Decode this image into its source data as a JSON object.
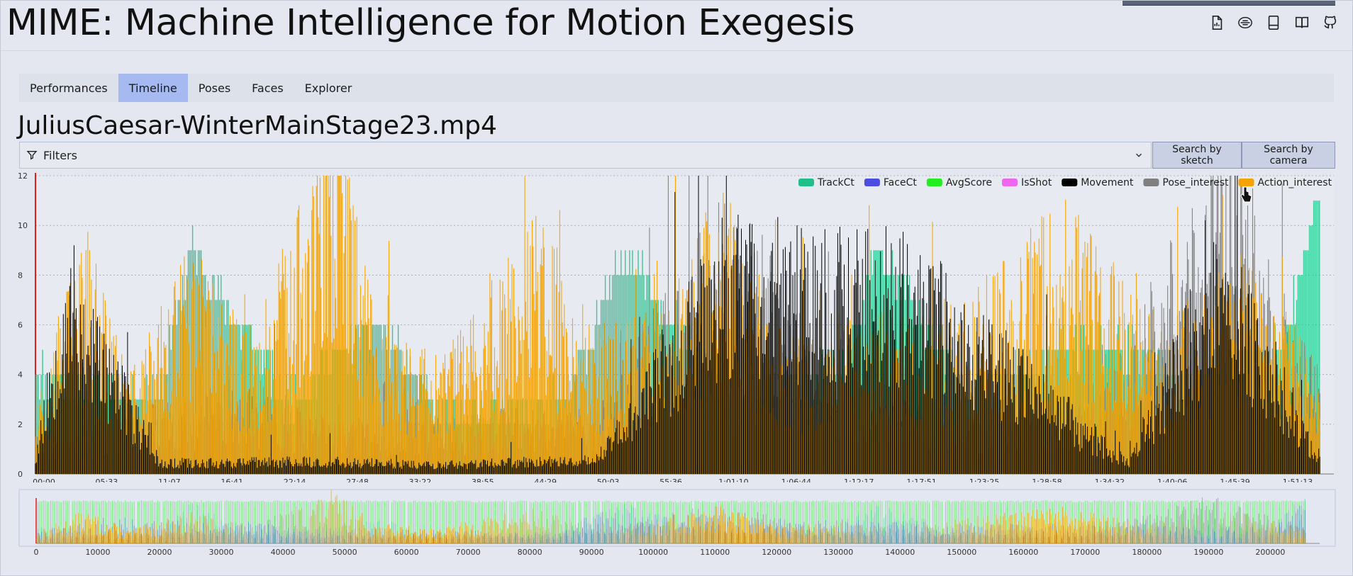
{
  "header": {
    "title": "MIME: Machine Intelligence for Motion Exegesis",
    "icons": [
      "document-icon",
      "logo-badge-icon",
      "book-icon",
      "manual-icon",
      "github-icon"
    ]
  },
  "tabs": [
    {
      "label": "Performances",
      "active": false
    },
    {
      "label": "Timeline",
      "active": true
    },
    {
      "label": "Poses",
      "active": false
    },
    {
      "label": "Faces",
      "active": false
    },
    {
      "label": "Explorer",
      "active": false
    }
  ],
  "file_title": "JuliusCaesar-WinterMainStage23.mp4",
  "filters": {
    "label": "Filters"
  },
  "buttons": {
    "search_sketch": "Search by sketch",
    "search_camera": "Search by camera"
  },
  "colors": {
    "accent_tab": "#a6baf1",
    "TrackCt": "#1fbf8a",
    "FaceCt": "#4b4ddf",
    "AvgScore": "#22ee22",
    "IsShot": "#ee66ee",
    "Movement": "#000000",
    "Pose_interest": "#808080",
    "Action_interest": "#f5a300"
  },
  "chart_data": [
    {
      "type": "line",
      "y_ticks": [
        "0",
        "2",
        "4",
        "6",
        "8",
        "10",
        "12"
      ],
      "ylim": [
        0,
        12
      ],
      "x_ticks": [
        "00:00",
        "05:33",
        "11:07",
        "16:41",
        "22:14",
        "27:48",
        "33:22",
        "38:55",
        "44:29",
        "50:03",
        "55:36",
        "1:01:10",
        "1:06:44",
        "1:12:17",
        "1:17:51",
        "1:23:25",
        "1:28:58",
        "1:34:32",
        "1:40:06",
        "1:45:39",
        "1:51:13"
      ],
      "xlim": [
        0,
        208000
      ],
      "grid": true,
      "legend_position": "top-right",
      "legend": [
        "TrackCt",
        "FaceCt",
        "AvgScore",
        "IsShot",
        "Movement",
        "Pose_interest",
        "Action_interest"
      ],
      "series": [
        {
          "name": "TrackCt",
          "x": [
            0,
            20000,
            25000,
            40000,
            55000,
            65000,
            85000,
            95000,
            100000,
            110000,
            130000,
            135000,
            150000,
            165000,
            175000,
            185000,
            200000,
            205000
          ],
          "y": [
            4,
            3,
            9,
            3,
            6,
            2,
            3,
            9,
            7,
            3,
            4,
            9,
            3,
            5,
            5,
            4,
            5,
            11
          ]
        },
        {
          "name": "Movement",
          "x": [
            0,
            5000,
            20000,
            45000,
            65000,
            90000,
            110000,
            140000,
            175000,
            190000,
            205000
          ],
          "y": [
            0.8,
            9.5,
            0.6,
            0.7,
            0.5,
            0.8,
            10,
            9.5,
            0.6,
            10.5,
            1.2
          ]
        },
        {
          "name": "Pose_interest",
          "x": [
            0,
            15000,
            30000,
            50000,
            70000,
            90000,
            110000,
            130000,
            150000,
            170000,
            190000,
            205000
          ],
          "y": [
            1.5,
            2.0,
            3.0,
            1.8,
            2.0,
            2.5,
            9,
            3,
            2.0,
            2.5,
            11,
            3.5
          ]
        },
        {
          "name": "Action_interest",
          "x": [
            0,
            8000,
            15000,
            25000,
            35000,
            48000,
            55000,
            65000,
            80000,
            90000,
            100000,
            110000,
            120000,
            135000,
            150000,
            165000,
            180000,
            195000,
            205000
          ],
          "y": [
            2.5,
            7.5,
            3.0,
            7.0,
            4.0,
            12,
            4.5,
            3.5,
            8.0,
            4.5,
            5.0,
            9.0,
            4.0,
            5.0,
            5.5,
            8.5,
            4.5,
            7.0,
            3.5
          ]
        }
      ]
    },
    {
      "type": "area",
      "x_ticks": [
        "0",
        "10000",
        "20000",
        "30000",
        "40000",
        "50000",
        "60000",
        "70000",
        "80000",
        "90000",
        "100000",
        "110000",
        "120000",
        "130000",
        "140000",
        "150000",
        "160000",
        "170000",
        "180000",
        "190000",
        "200000"
      ],
      "xlim": [
        0,
        208000
      ],
      "series": [
        {
          "name": "AvgScore",
          "x": [
            0,
            50000,
            100000,
            150000,
            205000
          ],
          "y": [
            0.95,
            0.95,
            0.94,
            0.95,
            0.95
          ]
        },
        {
          "name": "FaceCt",
          "x": [
            0,
            10000,
            50000,
            85000,
            90000,
            140000,
            200000,
            205000
          ],
          "y": [
            0.2,
            0.5,
            0.3,
            0.2,
            0.6,
            0.4,
            0.3,
            0.8
          ]
        }
      ]
    }
  ]
}
